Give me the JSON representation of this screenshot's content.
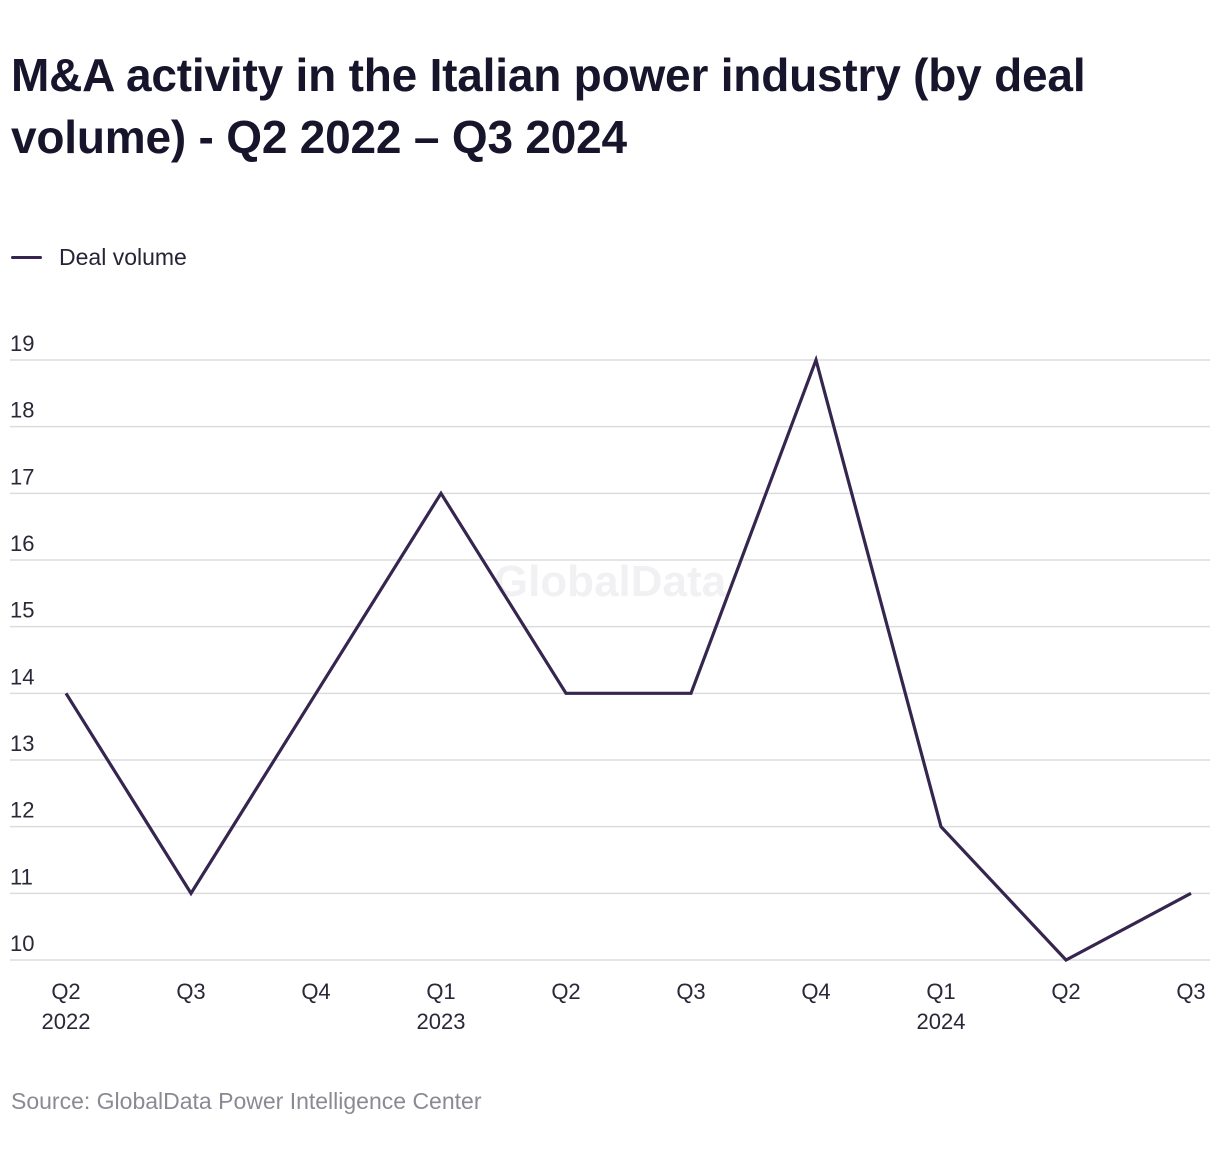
{
  "chart_data": {
    "type": "line",
    "title": "M&A activity in the Italian power industry (by deal volume) - Q2 2022 – Q3 2024",
    "categories": [
      "Q2 2022",
      "Q3",
      "Q4",
      "Q1 2023",
      "Q2",
      "Q3",
      "Q4",
      "Q1 2024",
      "Q2",
      "Q3"
    ],
    "x_tick_labels": [
      {
        "line1": "Q2",
        "line2": "2022"
      },
      {
        "line1": "Q3",
        "line2": ""
      },
      {
        "line1": "Q4",
        "line2": ""
      },
      {
        "line1": "Q1",
        "line2": "2023"
      },
      {
        "line1": "Q2",
        "line2": ""
      },
      {
        "line1": "Q3",
        "line2": ""
      },
      {
        "line1": "Q4",
        "line2": ""
      },
      {
        "line1": "Q1",
        "line2": "2024"
      },
      {
        "line1": "Q2",
        "line2": ""
      },
      {
        "line1": "Q3",
        "line2": ""
      }
    ],
    "series": [
      {
        "name": "Deal volume",
        "color": "#35254f",
        "values": [
          14,
          11,
          14,
          17,
          14,
          14,
          19,
          12,
          10,
          11
        ]
      }
    ],
    "ylim": [
      10,
      19
    ],
    "y_ticks": [
      10,
      11,
      12,
      13,
      14,
      15,
      16,
      17,
      18,
      19
    ],
    "xlabel": "",
    "ylabel": "",
    "grid": true,
    "legend_position": "top-left"
  },
  "watermark": "GlobalData",
  "source": "Source: GlobalData Power Intelligence Center",
  "colors": {
    "series": "#35254f",
    "grid": "#dcdcde",
    "title": "#17152b",
    "source": "#8b8a93"
  }
}
